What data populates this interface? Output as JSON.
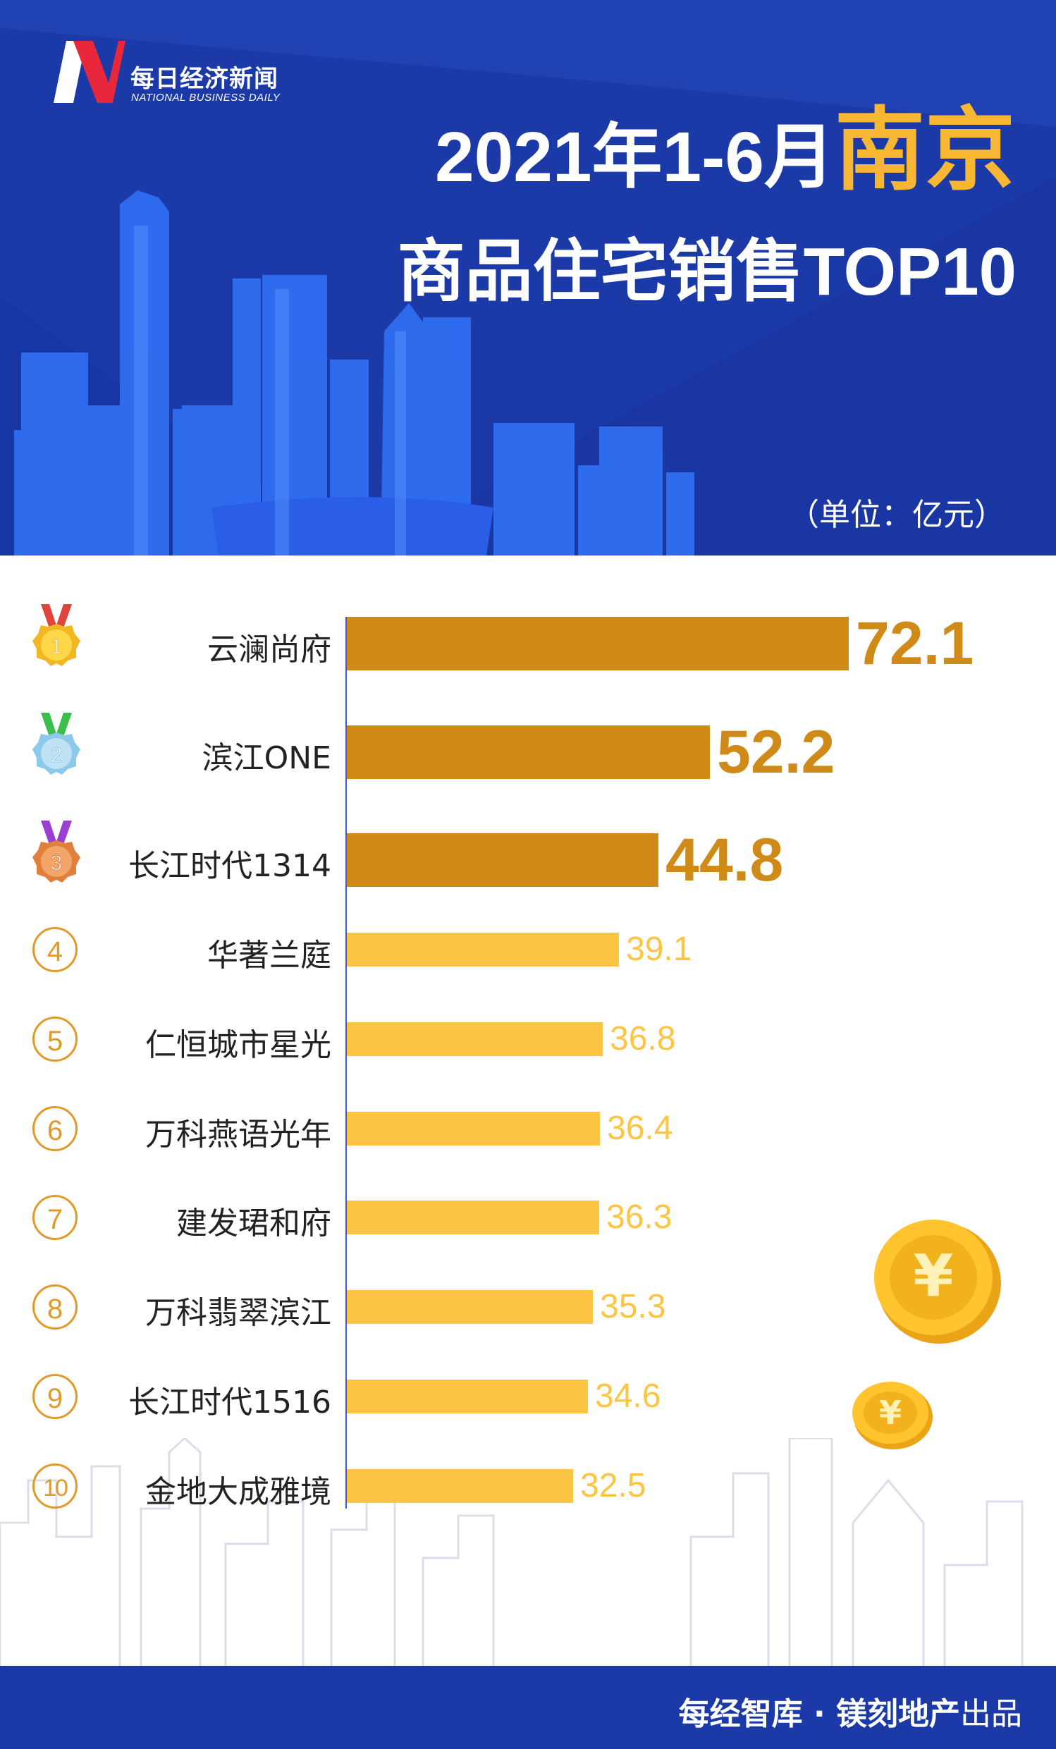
{
  "brand": {
    "name_cn": "每日经济新闻",
    "name_en": "NATIONAL BUSINESS DAILY"
  },
  "title": {
    "line1_prefix": "2021年1-6月",
    "line1_city": "南京",
    "line2": "商品住宅销售TOP10"
  },
  "unit": "（单位：亿元）",
  "colors": {
    "header_bg": "#1b3aa8",
    "accent_gold": "#f7b733",
    "top3_bar": "#cf8a17",
    "other_bar": "#fdc543",
    "axis": "#3b5bd0"
  },
  "chart_data": {
    "type": "bar",
    "orientation": "horizontal",
    "categories": [
      "云澜尚府",
      "滨江ONE",
      "长江时代1314",
      "华著兰庭",
      "仁恒城市星光",
      "万科燕语光年",
      "建发珺和府",
      "万科翡翠滨江",
      "长江时代1516",
      "金地大成雅境"
    ],
    "ranks": [
      "1",
      "2",
      "3",
      "4",
      "5",
      "6",
      "7",
      "8",
      "9",
      "10"
    ],
    "values": [
      72.1,
      52.2,
      44.8,
      39.1,
      36.8,
      36.4,
      36.3,
      35.3,
      34.6,
      32.5
    ],
    "value_labels": [
      "72.1",
      "52.2",
      "44.8",
      "39.1",
      "36.8",
      "36.4",
      "36.3",
      "35.3",
      "34.6",
      "32.5"
    ],
    "xlim": [
      0,
      72.1
    ],
    "unit": "亿元",
    "grid": false
  },
  "medals": [
    {
      "rank": "1",
      "ribbon": "#e0443a",
      "face": "#ffd84a",
      "rim": "#f2b824"
    },
    {
      "rank": "2",
      "ribbon": "#3bbf4a",
      "face": "#bfe3f5",
      "rim": "#8cc9ea"
    },
    {
      "rank": "3",
      "ribbon": "#9b3fd0",
      "face": "#f3a66a",
      "rim": "#e0803c"
    }
  ],
  "footer": {
    "text_bold": "每经智库 · 镁刻地产",
    "text_suffix": "出品"
  }
}
